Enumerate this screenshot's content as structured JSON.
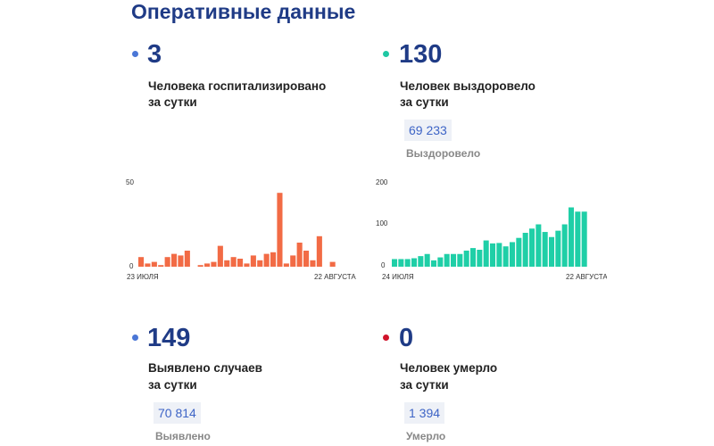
{
  "heading": "Оперативные данные",
  "colors": {
    "blue": "#4a76d6",
    "green": "#1fc7a3",
    "red": "#d0142b",
    "bar_orange": "#f26b45",
    "bar_green": "#1fcfa7"
  },
  "hospitalized": {
    "value": "3",
    "desc_line1": "Человека госпитализировано",
    "desc_line2": "за сутки"
  },
  "recovered": {
    "value": "130",
    "desc_line1": "Человек выздоровело",
    "desc_line2": "за сутки",
    "total": "69 233",
    "total_label": "Выздоровело"
  },
  "cases": {
    "value": "149",
    "desc_line1": "Выявлено случаев",
    "desc_line2": "за сутки",
    "total": "70 814",
    "total_label": "Выявлено"
  },
  "deaths": {
    "value": "0",
    "desc_line1": "Человек умерло",
    "desc_line2": "за сутки",
    "total": "1 394",
    "total_label": "Умерло"
  },
  "chart_data": [
    {
      "type": "bar",
      "x_start_label": "23 ИЮЛЯ",
      "x_end_label": "22 АВГУСТА",
      "y_ticks": [
        "50",
        "0"
      ],
      "ylim": [
        0,
        50
      ],
      "values": [
        6,
        2,
        3,
        1,
        6,
        8,
        7,
        10,
        0,
        1,
        2,
        3,
        13,
        4,
        6,
        5,
        2,
        7,
        4,
        8,
        9,
        46,
        2,
        7,
        15,
        10,
        4,
        19,
        0,
        3
      ]
    },
    {
      "type": "bar",
      "x_start_label": "24 ИЮЛЯ",
      "x_end_label": "22 АВГУСТА",
      "y_ticks": [
        "200",
        "100",
        "0"
      ],
      "ylim": [
        0,
        200
      ],
      "values": [
        18,
        18,
        18,
        20,
        25,
        30,
        15,
        22,
        30,
        30,
        30,
        38,
        44,
        40,
        62,
        55,
        56,
        48,
        58,
        68,
        80,
        90,
        100,
        82,
        70,
        85,
        100,
        140,
        130,
        130
      ]
    }
  ]
}
